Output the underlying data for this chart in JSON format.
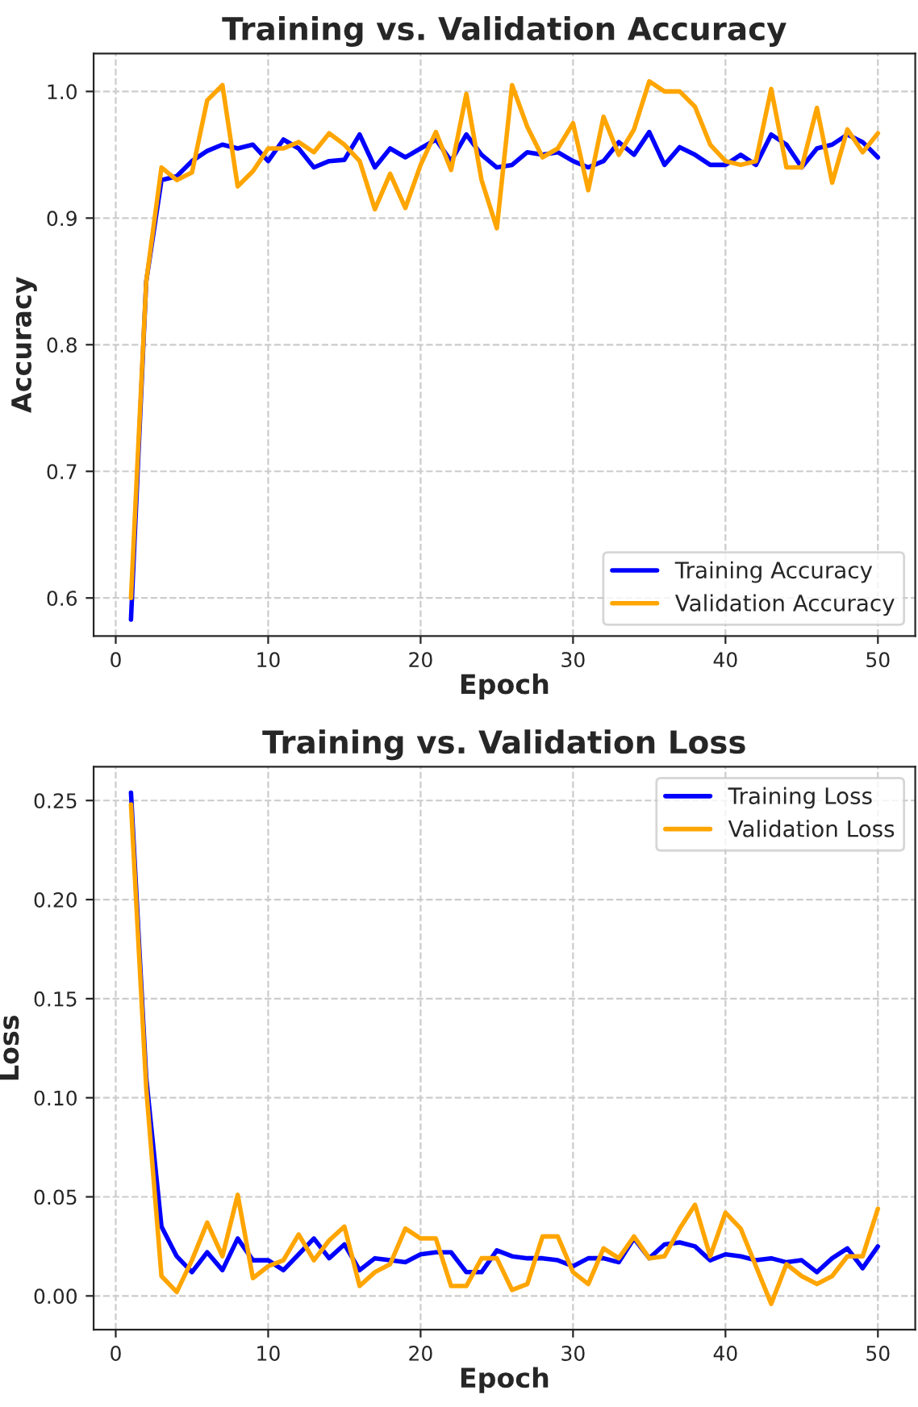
{
  "chart_data": [
    {
      "type": "line",
      "title": "Training vs. Validation Accuracy",
      "xlabel": "Epoch",
      "ylabel": "Accuracy",
      "x": [
        1,
        2,
        3,
        4,
        5,
        6,
        7,
        8,
        9,
        10,
        11,
        12,
        13,
        14,
        15,
        16,
        17,
        18,
        19,
        20,
        21,
        22,
        23,
        24,
        25,
        26,
        27,
        28,
        29,
        30,
        31,
        32,
        33,
        34,
        35,
        36,
        37,
        38,
        39,
        40,
        41,
        42,
        43,
        44,
        45,
        46,
        47,
        48,
        49,
        50
      ],
      "series": [
        {
          "name": "Training Accuracy",
          "color": "#0000ff",
          "values": [
            0.583,
            0.85,
            0.93,
            0.933,
            0.945,
            0.953,
            0.958,
            0.955,
            0.958,
            0.945,
            0.962,
            0.955,
            0.94,
            0.945,
            0.946,
            0.966,
            0.94,
            0.955,
            0.948,
            0.955,
            0.962,
            0.945,
            0.966,
            0.95,
            0.94,
            0.942,
            0.952,
            0.95,
            0.952,
            0.945,
            0.94,
            0.945,
            0.96,
            0.95,
            0.968,
            0.942,
            0.956,
            0.95,
            0.942,
            0.942,
            0.95,
            0.942,
            0.966,
            0.958,
            0.94,
            0.955,
            0.958,
            0.966,
            0.96,
            0.948
          ]
        },
        {
          "name": "Validation Accuracy",
          "color": "#ffa500",
          "values": [
            0.6,
            0.85,
            0.94,
            0.93,
            0.936,
            0.993,
            1.005,
            0.925,
            0.937,
            0.955,
            0.955,
            0.96,
            0.952,
            0.967,
            0.958,
            0.945,
            0.907,
            0.935,
            0.908,
            0.942,
            0.968,
            0.938,
            0.998,
            0.93,
            0.892,
            1.005,
            0.972,
            0.948,
            0.955,
            0.975,
            0.922,
            0.98,
            0.95,
            0.97,
            1.008,
            1.0,
            1.0,
            0.988,
            0.958,
            0.945,
            0.942,
            0.945,
            1.002,
            0.94,
            0.94,
            0.987,
            0.928,
            0.97,
            0.952,
            0.967
          ]
        }
      ],
      "xlim": [
        -1.45,
        52.45
      ],
      "xticks": [
        0,
        10,
        20,
        30,
        40,
        50
      ],
      "ylim": [
        0.57,
        1.03
      ],
      "yticks": [
        0.6,
        0.7,
        0.8,
        0.9,
        {
          "value": 1.0,
          "label": "1.0"
        }
      ],
      "grid": true,
      "legend": "bottom right",
      "line_style": "solid",
      "marker": "none"
    },
    {
      "type": "line",
      "title": "Training vs. Validation Loss",
      "xlabel": "Epoch",
      "ylabel": "Loss",
      "x": [
        1,
        2,
        3,
        4,
        5,
        6,
        7,
        8,
        9,
        10,
        11,
        12,
        13,
        14,
        15,
        16,
        17,
        18,
        19,
        20,
        21,
        22,
        23,
        24,
        25,
        26,
        27,
        28,
        29,
        30,
        31,
        32,
        33,
        34,
        35,
        36,
        37,
        38,
        39,
        40,
        41,
        42,
        43,
        44,
        45,
        46,
        47,
        48,
        49,
        50
      ],
      "series": [
        {
          "name": "Training Loss",
          "color": "#0000ff",
          "values": [
            0.254,
            0.11,
            0.035,
            0.02,
            0.012,
            0.022,
            0.013,
            0.029,
            0.018,
            0.018,
            0.013,
            0.021,
            0.029,
            0.019,
            0.026,
            0.013,
            0.019,
            0.018,
            0.017,
            0.021,
            0.022,
            0.022,
            0.012,
            0.012,
            0.023,
            0.02,
            0.019,
            0.019,
            0.018,
            0.015,
            0.019,
            0.019,
            0.017,
            0.029,
            0.019,
            0.026,
            0.027,
            0.025,
            0.018,
            0.021,
            0.02,
            0.018,
            0.019,
            0.017,
            0.018,
            0.012,
            0.019,
            0.024,
            0.014,
            0.025
          ]
        },
        {
          "name": "Validation Loss",
          "color": "#ffa500",
          "values": [
            0.248,
            0.105,
            0.01,
            0.002,
            0.018,
            0.037,
            0.02,
            0.051,
            0.009,
            0.015,
            0.018,
            0.031,
            0.018,
            0.028,
            0.035,
            0.005,
            0.012,
            0.016,
            0.034,
            0.029,
            0.029,
            0.005,
            0.005,
            0.019,
            0.019,
            0.003,
            0.006,
            0.03,
            0.03,
            0.012,
            0.006,
            0.024,
            0.019,
            0.03,
            0.019,
            0.02,
            0.034,
            0.046,
            0.02,
            0.042,
            0.034,
            0.015,
            -0.004,
            0.016,
            0.01,
            0.006,
            0.01,
            0.02,
            0.02,
            0.044
          ]
        }
      ],
      "xlim": [
        -1.45,
        52.45
      ],
      "xticks": [
        0,
        10,
        20,
        30,
        40,
        50
      ],
      "ylim": [
        -0.017,
        0.267
      ],
      "yticks": [
        {
          "value": 0.0,
          "label": "0.00"
        },
        {
          "value": 0.05,
          "label": "0.05"
        },
        {
          "value": 0.1,
          "label": "0.10"
        },
        {
          "value": 0.15,
          "label": "0.15"
        },
        {
          "value": 0.2,
          "label": "0.20"
        },
        {
          "value": 0.25,
          "label": "0.25"
        }
      ],
      "grid": true,
      "legend": "top right",
      "line_style": "solid",
      "marker": "none"
    }
  ]
}
